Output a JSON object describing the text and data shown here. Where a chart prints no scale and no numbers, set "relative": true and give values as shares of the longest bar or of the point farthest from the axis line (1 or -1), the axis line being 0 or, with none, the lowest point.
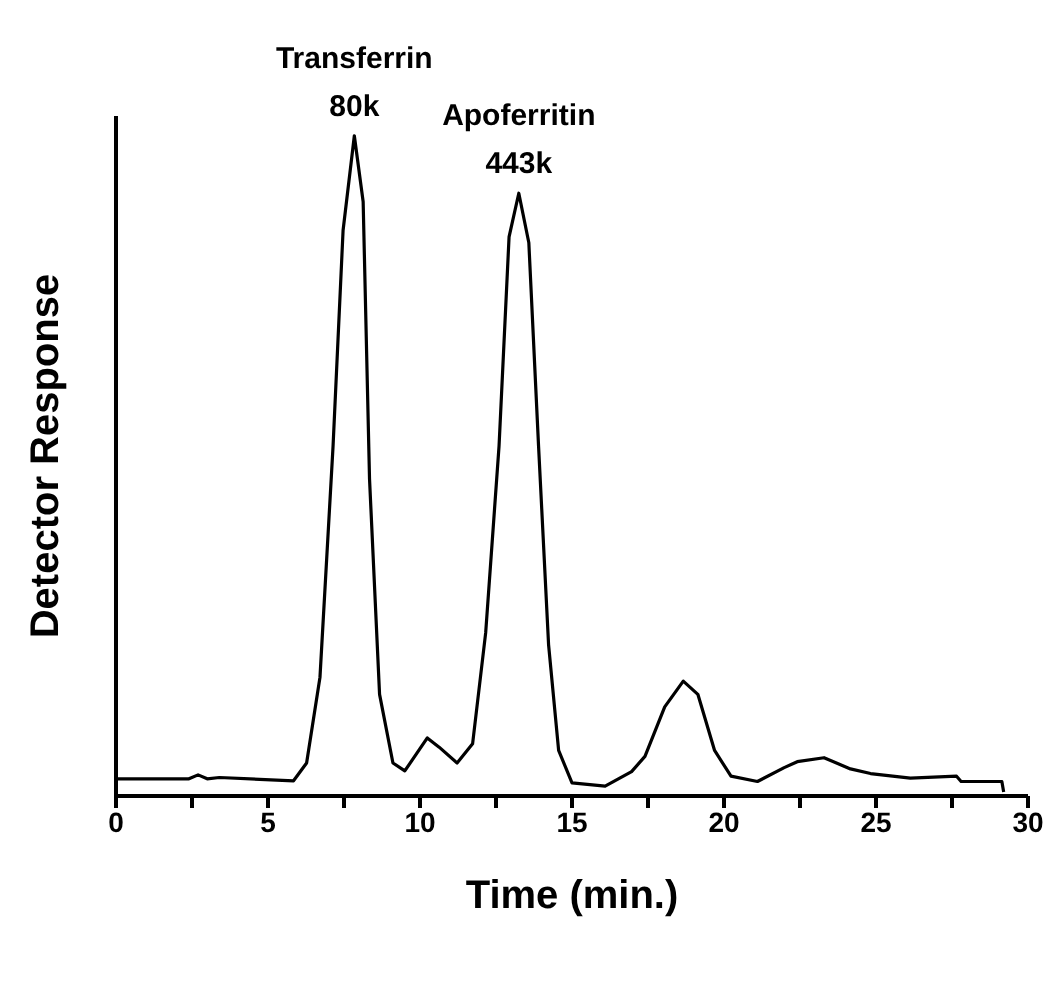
{
  "chart_data": {
    "type": "line",
    "relative": true,
    "xlabel": "Time (min.)",
    "ylabel": "Detector Response",
    "xlim": [
      0,
      30
    ],
    "xticks": [
      0,
      {
        "value": 2.5,
        "label": null
      },
      5,
      {
        "value": 7.5,
        "label": null
      },
      10,
      {
        "value": 12.5,
        "label": null
      },
      15,
      {
        "value": 17.5,
        "label": null
      },
      20,
      {
        "value": 22.5,
        "label": null
      },
      25,
      {
        "value": 27.5,
        "label": null
      },
      30
    ],
    "annotations": [
      {
        "text": "Transferrin\n80k",
        "x": 7.84,
        "y": 1
      },
      {
        "text": "Apoferritin\n443k",
        "x": 13.25,
        "y": 0.913
      }
    ],
    "marker": "none",
    "line_style": "solid",
    "grid": false,
    "legend": false,
    "series": [
      {
        "color": "#000000",
        "x": [
          0,
          2.4,
          2.7,
          3.0,
          3.4,
          5.84,
          6.27,
          6.71,
          7.14,
          7.47,
          7.84,
          8.13,
          8.34,
          8.67,
          9.11,
          9.5,
          10.24,
          10.63,
          11.22,
          11.73,
          12.16,
          12.6,
          12.93,
          13.25,
          13.58,
          13.9,
          14.23,
          14.56,
          15.0,
          16.09,
          16.96,
          17.4,
          18.05,
          18.66,
          19.14,
          19.69,
          20.23,
          21.1,
          21.98,
          22.41,
          23.29,
          24.16,
          24.82,
          26.13,
          27.65,
          27.8,
          29.14,
          29.2
        ],
        "values": [
          0.026,
          0.026,
          0.032,
          0.026,
          0.028,
          0.023,
          0.05,
          0.18,
          0.53,
          0.857,
          1,
          0.9,
          0.48,
          0.154,
          0.05,
          0.038,
          0.088,
          0.074,
          0.05,
          0.079,
          0.247,
          0.53,
          0.847,
          0.913,
          0.838,
          0.53,
          0.229,
          0.069,
          0.02,
          0.015,
          0.037,
          0.06,
          0.135,
          0.174,
          0.154,
          0.069,
          0.03,
          0.022,
          0.043,
          0.052,
          0.058,
          0.041,
          0.034,
          0.027,
          0.03,
          0.022,
          0.022,
          0.006
        ]
      }
    ]
  }
}
